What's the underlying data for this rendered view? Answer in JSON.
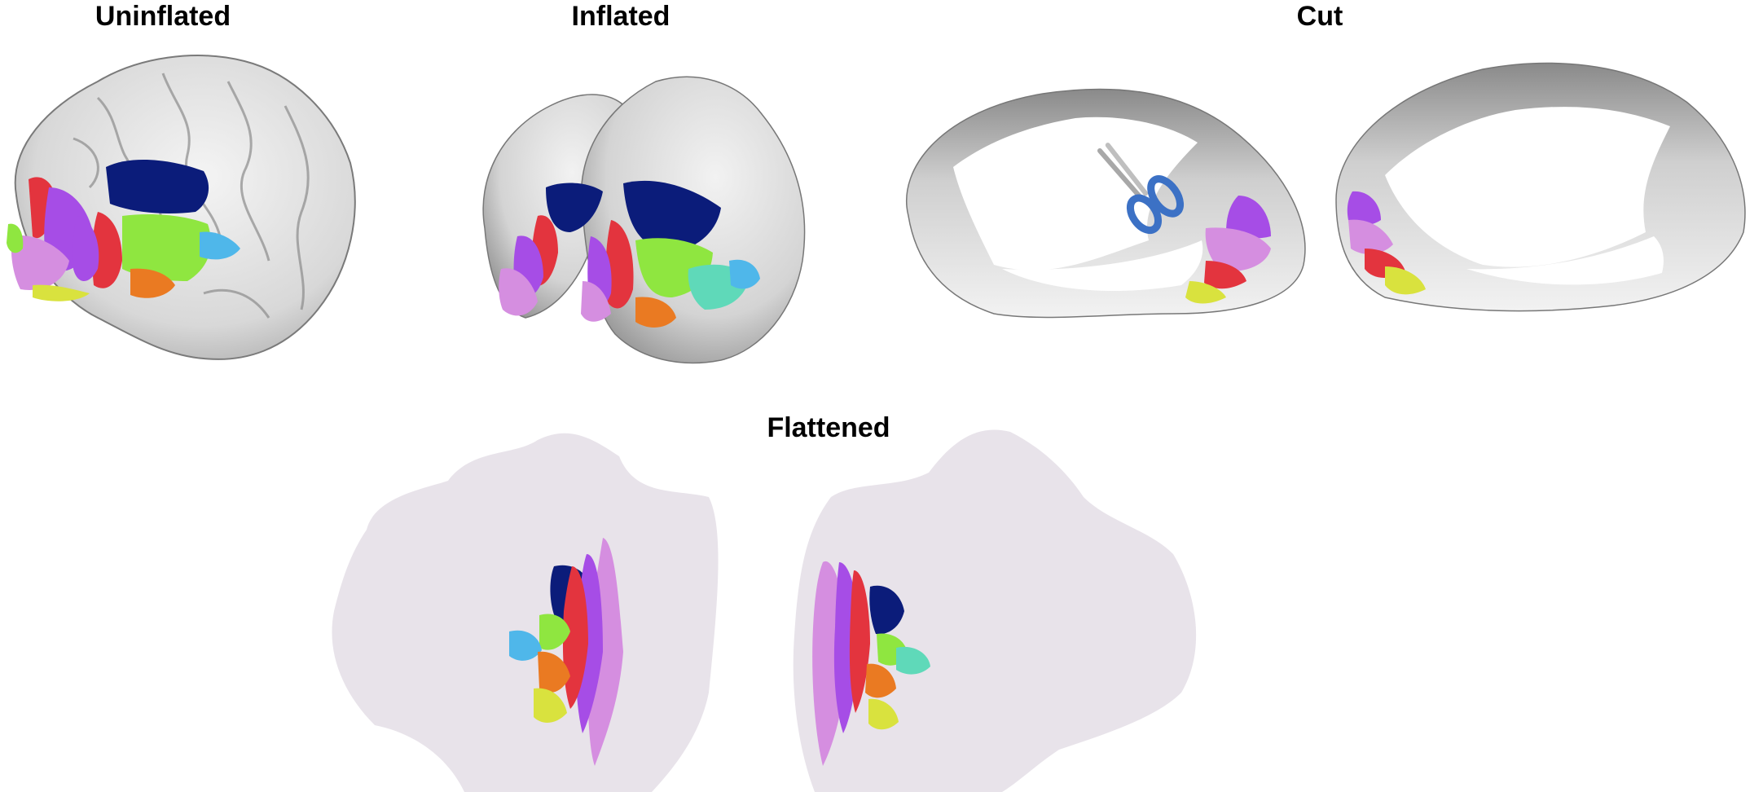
{
  "panels": {
    "uninflated": {
      "title": "Uninflated"
    },
    "inflated": {
      "title": "Inflated"
    },
    "cut": {
      "title": "Cut"
    },
    "flattened": {
      "title": "Flattened"
    }
  },
  "colors": {
    "cortex_gray": "#d9d9d9",
    "cortex_shadow": "#9a9a9a",
    "flatmap_background": "#e8e3ea",
    "region_navy": "#0b1c7a",
    "region_violet": "#a64de6",
    "region_light_purple": "#d58ee0",
    "region_red": "#e3343e",
    "region_green": "#8fe640",
    "region_orange": "#ea7a22",
    "region_yellow": "#d9e23e",
    "region_teal": "#5fd9b9",
    "region_sky_blue": "#4fb7ea",
    "scissors_handle": "#3c71c5"
  },
  "icons": [
    "scissors-icon"
  ]
}
